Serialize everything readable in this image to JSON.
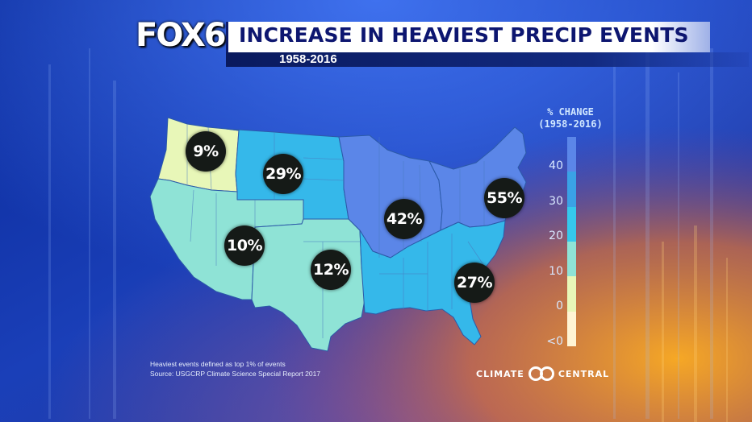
{
  "header": {
    "logo": "FOX6",
    "title": "INCREASE IN HEAVIEST PRECIP EVENTS",
    "subtitle": "1958-2016"
  },
  "legend": {
    "title_line1": "% CHANGE",
    "title_line2": "(1958-2016)",
    "ticks": [
      "40",
      "30",
      "20",
      "10",
      "0",
      "<0"
    ],
    "colors": [
      "#5b86e8",
      "#3aa2e6",
      "#35c8ec",
      "#8fe3d6",
      "#e8f7b8",
      "#fff4d4"
    ]
  },
  "regions": [
    {
      "name": "Northwest",
      "value": "9%",
      "color": "#e8f7b8"
    },
    {
      "name": "Great Plains North",
      "value": "29%",
      "color": "#35b8ea"
    },
    {
      "name": "Southwest",
      "value": "10%",
      "color": "#8fe3d6"
    },
    {
      "name": "Great Plains South",
      "value": "12%",
      "color": "#8fe3d6"
    },
    {
      "name": "Midwest",
      "value": "42%",
      "color": "#5b86e8"
    },
    {
      "name": "Northeast",
      "value": "55%",
      "color": "#5b86e8"
    },
    {
      "name": "Southeast",
      "value": "27%",
      "color": "#35b8ea"
    }
  ],
  "footnote": {
    "line1": "Heaviest events defined as top 1% of events",
    "line2": "Source: USGCRP Climate Science Special Report 2017"
  },
  "branding": {
    "left": "CLIMATE",
    "right": "CENTRAL"
  }
}
